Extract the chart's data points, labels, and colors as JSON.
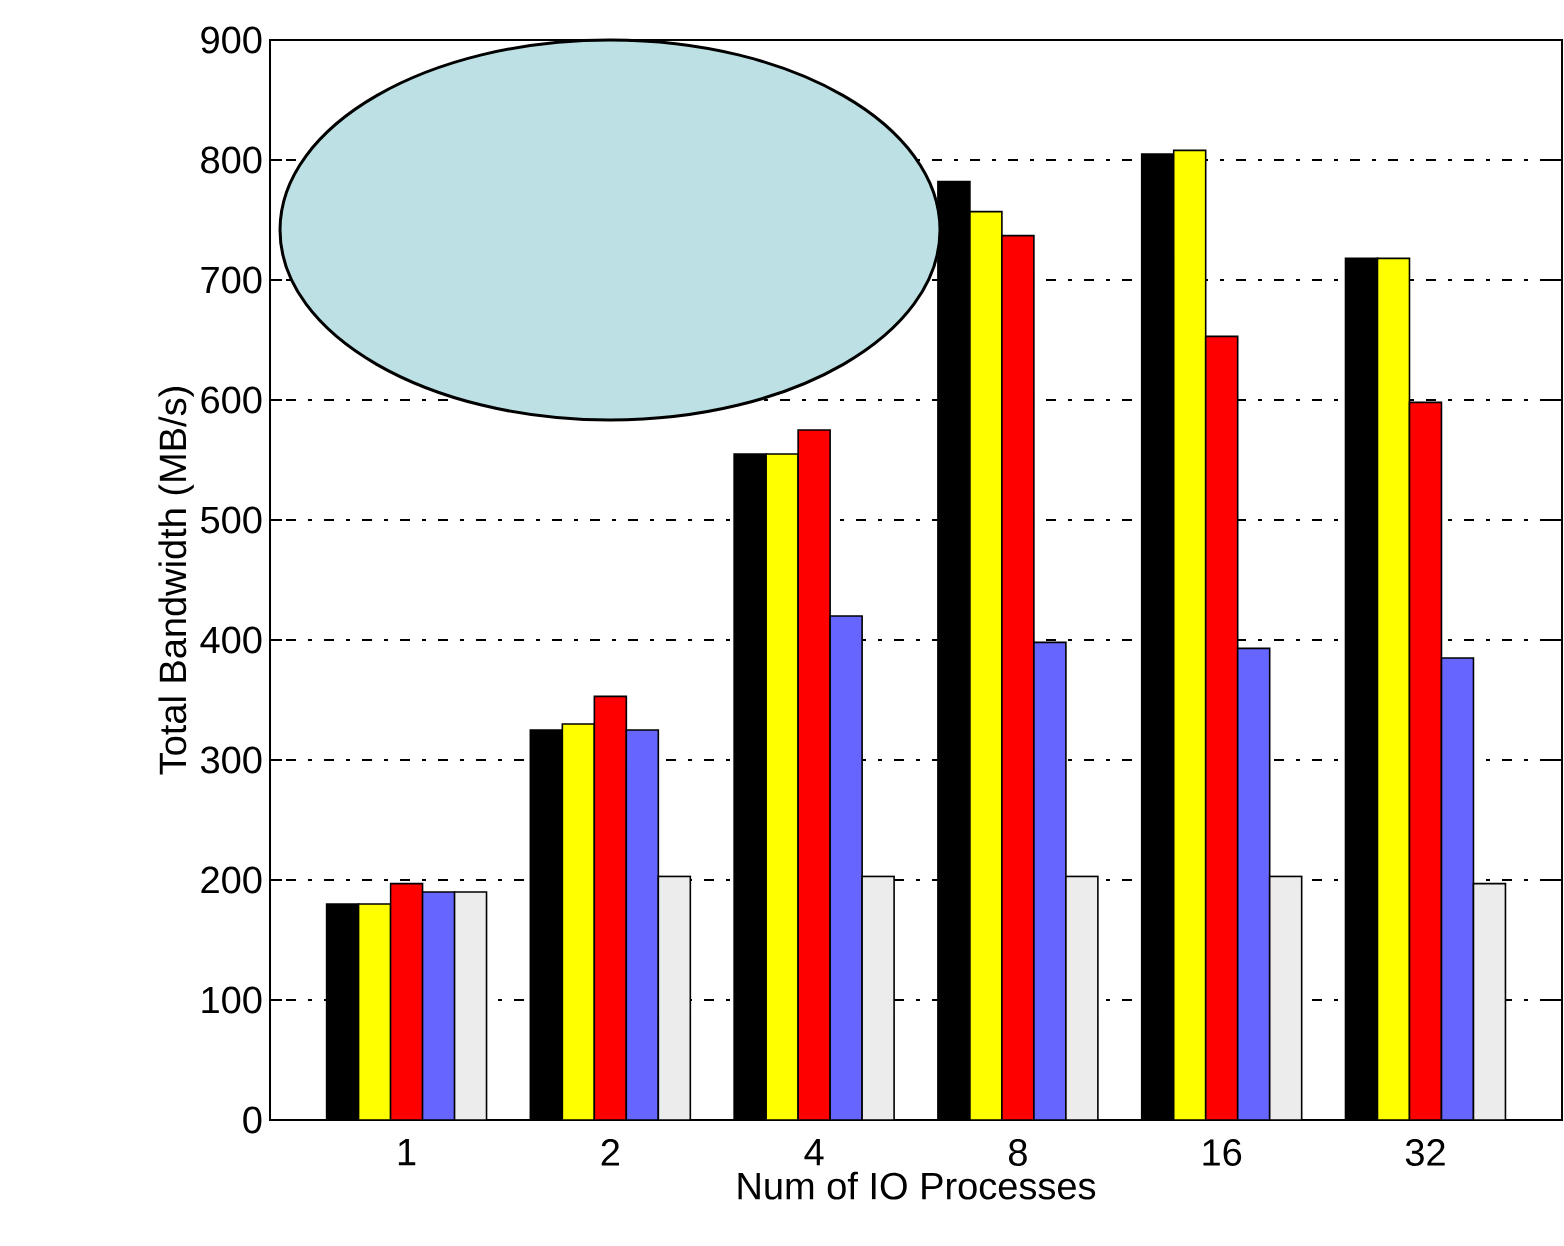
{
  "chart_data": {
    "type": "bar",
    "xlabel": "Num of IO Processes",
    "ylabel": "Total Bandwidth (MB/s)",
    "categories": [
      "1",
      "2",
      "4",
      "8",
      "16",
      "32"
    ],
    "series": [
      {
        "color": "#000000",
        "values": [
          180,
          325,
          555,
          782,
          805,
          718
        ]
      },
      {
        "color": "#ffff00",
        "values": [
          180,
          330,
          555,
          757,
          808,
          718
        ]
      },
      {
        "color": "#ff0000",
        "values": [
          197,
          353,
          575,
          737,
          653,
          598
        ]
      },
      {
        "color": "#6666ff",
        "values": [
          190,
          325,
          420,
          398,
          393,
          385
        ]
      },
      {
        "color": "#ececec",
        "values": [
          190,
          203,
          203,
          203,
          203,
          197
        ]
      }
    ],
    "ylim": [
      0,
      900
    ],
    "yticks": [
      0,
      100,
      200,
      300,
      400,
      500,
      600,
      700,
      800,
      900
    ],
    "grid": "y"
  }
}
